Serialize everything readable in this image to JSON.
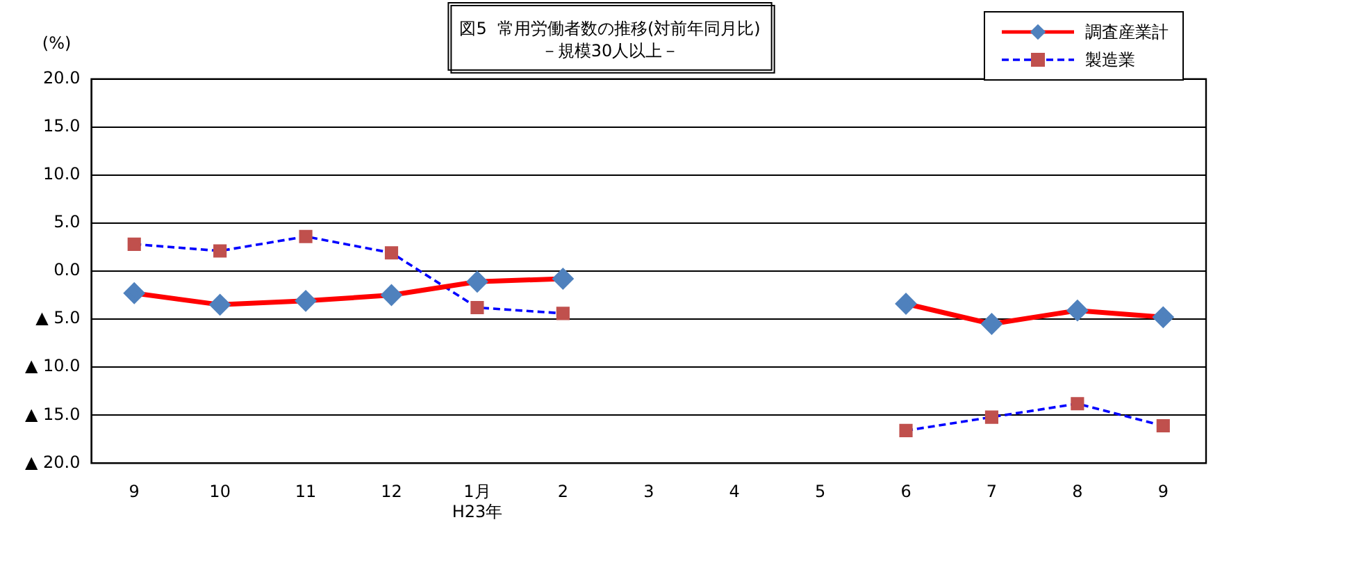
{
  "chart_data": {
    "type": "line",
    "title": "図5  常用労働者数の推移(対前年同月比)",
    "subtitle": "－規模30人以上－",
    "ylabel": "(%)",
    "categories": [
      "9",
      "10",
      "11",
      "12",
      "1月\nH23年",
      "2",
      "3",
      "4",
      "5",
      "6",
      "7",
      "8",
      "9"
    ],
    "series": [
      {
        "name": "調査産業計",
        "color": "#ff0000",
        "marker": "diamond",
        "line_style": "solid",
        "values": [
          -2.3,
          -3.5,
          -3.1,
          -2.5,
          -1.1,
          -0.8,
          null,
          null,
          null,
          -3.4,
          -5.5,
          -4.1,
          -4.8
        ]
      },
      {
        "name": "製造業",
        "color": "#0000ff",
        "marker": "square",
        "line_style": "dashed",
        "values": [
          2.8,
          2.1,
          3.6,
          1.9,
          -3.8,
          -4.4,
          null,
          null,
          null,
          -16.6,
          -15.2,
          -13.8,
          -16.1
        ]
      }
    ],
    "ylim": [
      -20,
      20
    ],
    "yticks": [
      {
        "value": -20,
        "label": "▲ 20.0"
      },
      {
        "value": -15,
        "label": "▲ 15.0"
      },
      {
        "value": -10,
        "label": "▲ 10.0"
      },
      {
        "value": -5,
        "label": "▲ 5.0"
      },
      {
        "value": 0,
        "label": "0.0"
      },
      {
        "value": 5,
        "label": "5.0"
      },
      {
        "value": 10,
        "label": "10.0"
      },
      {
        "value": 15,
        "label": "15.0"
      },
      {
        "value": 20,
        "label": "20.0"
      }
    ],
    "grid": "y",
    "legend": "top right"
  }
}
